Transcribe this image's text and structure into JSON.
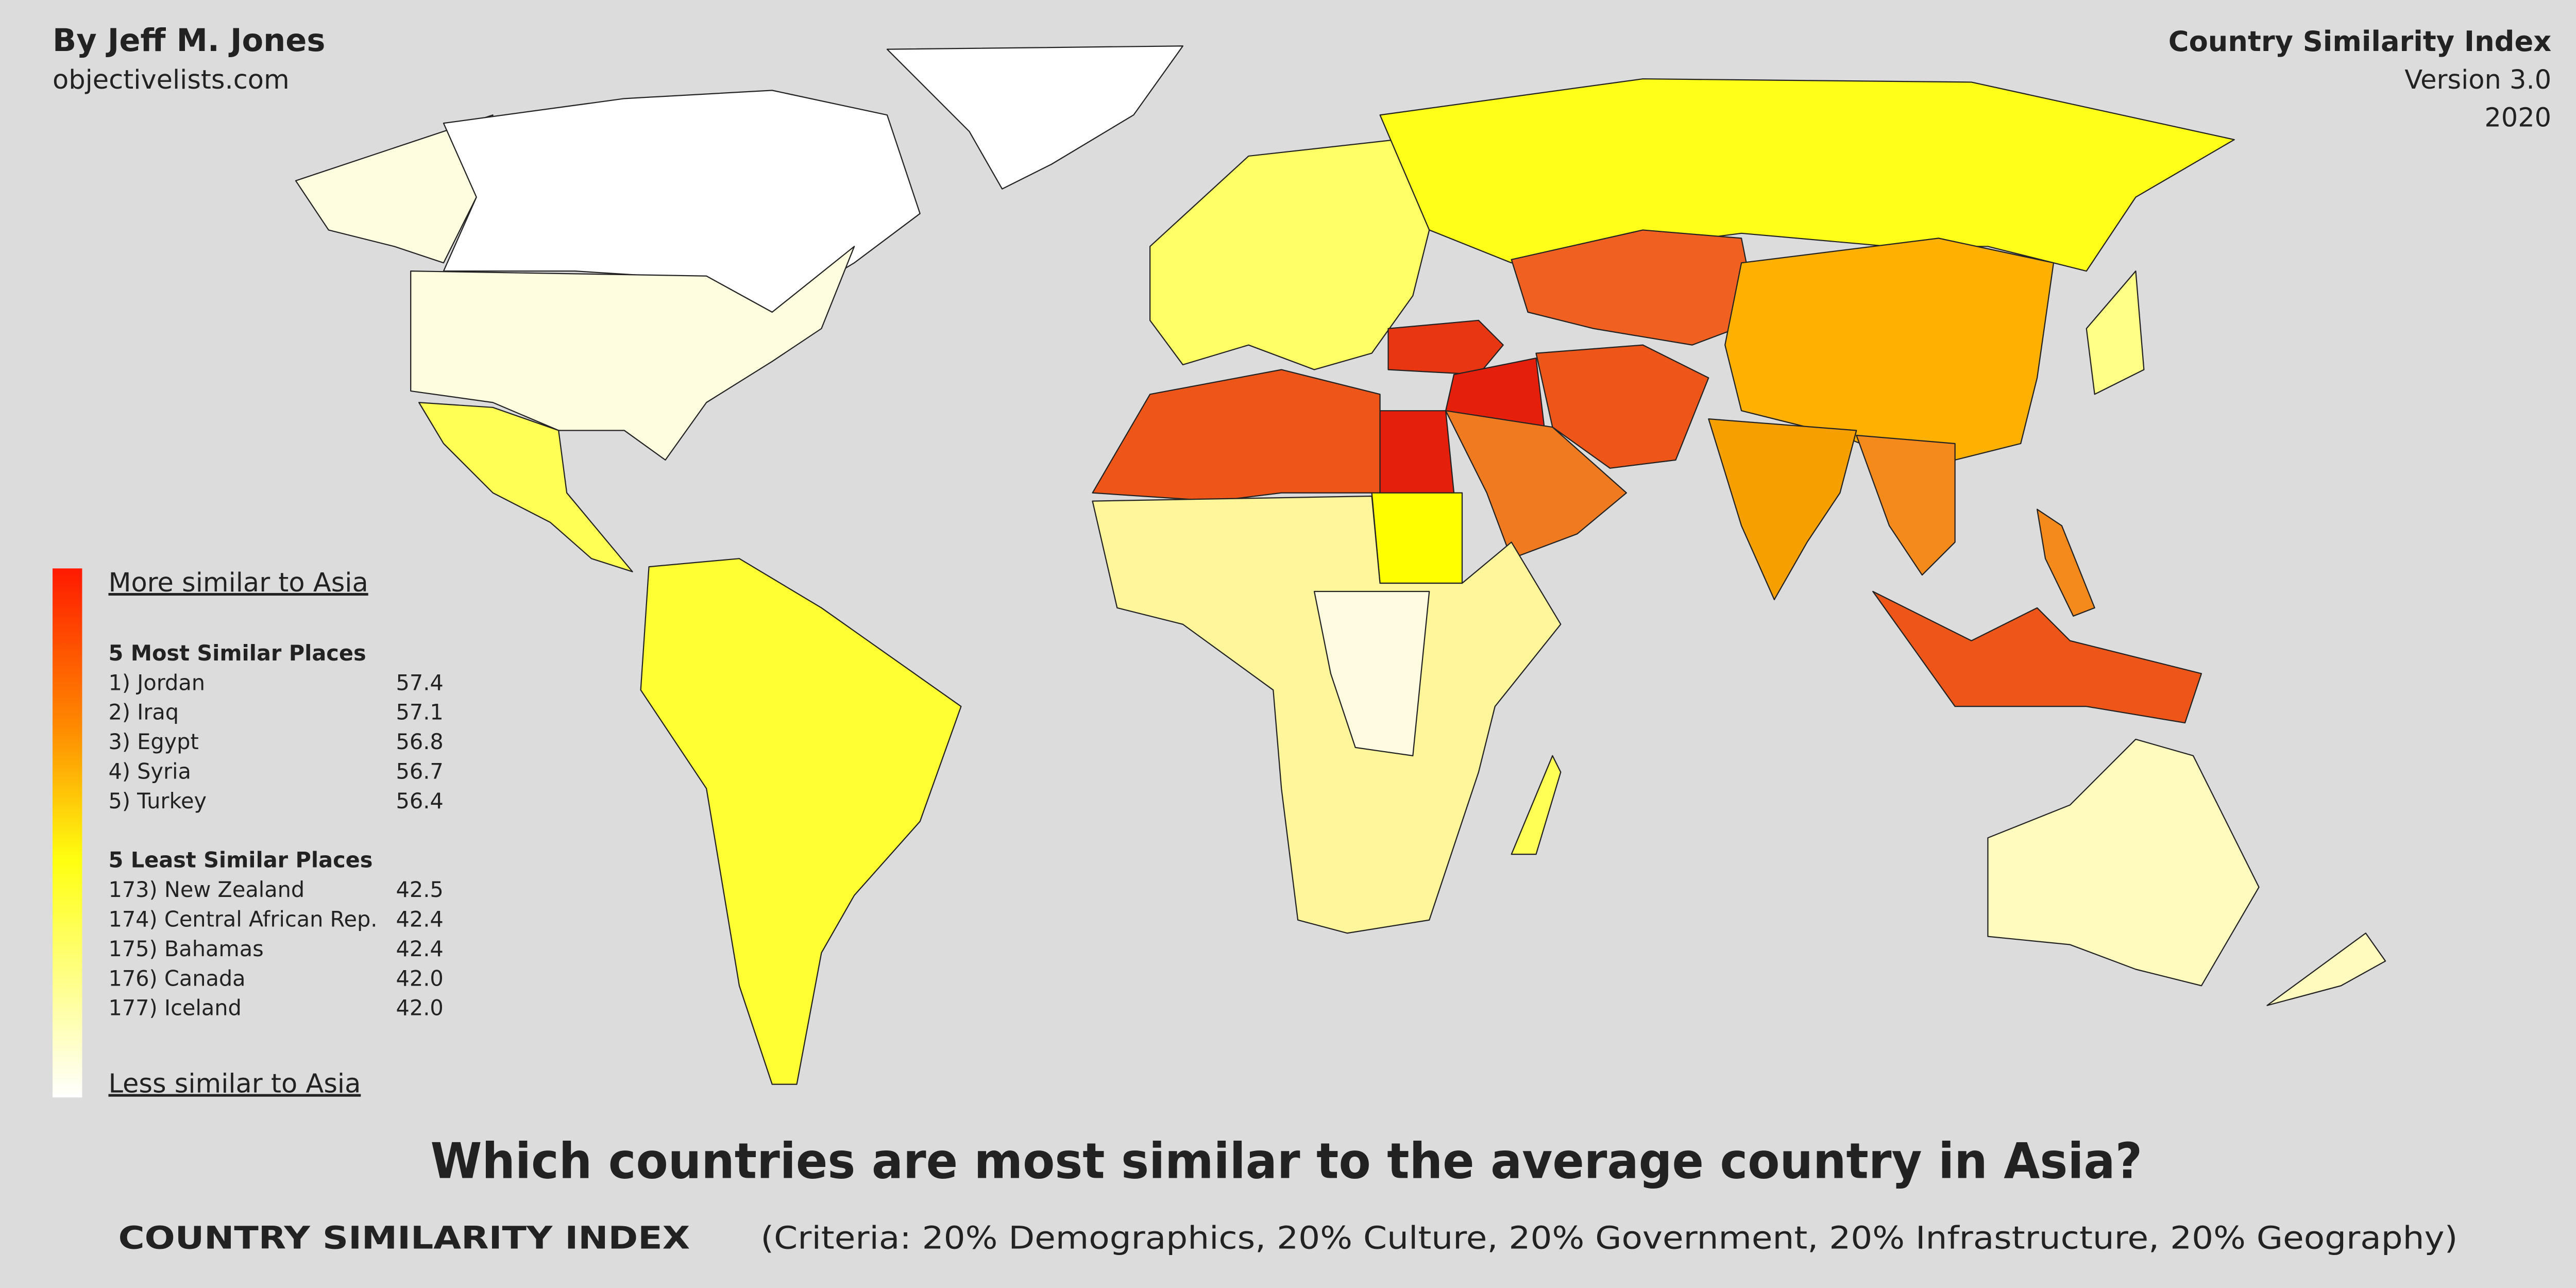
{
  "header": {
    "author": "By Jeff M. Jones",
    "site": "objectivelists.com",
    "index_title": "Country Similarity Index",
    "version": "Version 3.0",
    "year": "2020"
  },
  "legend": {
    "top": "More similar to Asia",
    "bottom": "Less similar to Asia",
    "most_heading": "5 Most Similar Places",
    "most": [
      {
        "label": "1) Jordan",
        "value": "57.4"
      },
      {
        "label": "2) Iraq",
        "value": "57.1"
      },
      {
        "label": "3) Egypt",
        "value": "56.8"
      },
      {
        "label": "4) Syria",
        "value": "56.7"
      },
      {
        "label": "5) Turkey",
        "value": "56.4"
      }
    ],
    "least_heading": "5 Least Similar Places",
    "least": [
      {
        "label": "173) New Zealand",
        "value": "42.5"
      },
      {
        "label": "174) Central African Rep.",
        "value": "42.4"
      },
      {
        "label": "175) Bahamas",
        "value": "42.4"
      },
      {
        "label": "176) Canada",
        "value": "42.0"
      },
      {
        "label": "177) Iceland",
        "value": "42.0"
      }
    ]
  },
  "footer": {
    "title": "Which countries are most similar to the average country in Asia?",
    "index_name": "COUNTRY SIMILARITY INDEX",
    "criteria": "(Criteria: 20% Demographics, 20% Culture, 20% Government, 20% Infrastructure, 20% Geography)"
  }
}
